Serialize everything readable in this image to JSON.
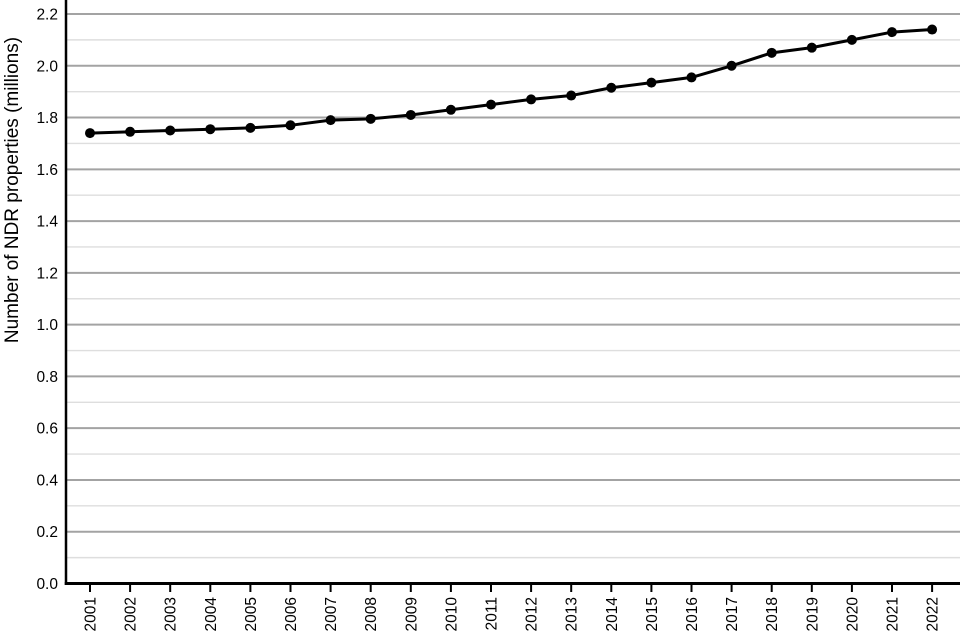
{
  "chart": {
    "ylabel": "Number of NDR properties (millions)"
  },
  "chart_data": {
    "type": "line",
    "title": "",
    "xlabel": "",
    "ylabel": "Number of NDR properties (millions)",
    "x": [
      "2001",
      "2002",
      "2003",
      "2004",
      "2005",
      "2006",
      "2007",
      "2008",
      "2009",
      "2010",
      "2011",
      "2012",
      "2013",
      "2014",
      "2015",
      "2016",
      "2017",
      "2018",
      "2019",
      "2020",
      "2021",
      "2022"
    ],
    "series": [
      {
        "name": "NDR properties (millions)",
        "values": [
          1.74,
          1.745,
          1.75,
          1.755,
          1.76,
          1.77,
          1.79,
          1.795,
          1.81,
          1.83,
          1.85,
          1.87,
          1.885,
          1.915,
          1.935,
          1.955,
          2.0,
          2.05,
          2.07,
          2.1,
          2.13,
          2.14
        ]
      }
    ],
    "ylim": [
      0.0,
      2.2
    ],
    "y_major_step": 0.2,
    "y_minor_step": 0.1,
    "y_tick_labels": [
      "0.0",
      "0.2",
      "0.4",
      "0.6",
      "0.8",
      "1.0",
      "1.2",
      "1.4",
      "1.6",
      "1.8",
      "2.0",
      "2.2"
    ],
    "legend": "none",
    "grid": "horizontal major and minor",
    "marker": "filled-circle",
    "colors": {
      "line": "#000000",
      "marker": "#000000",
      "axis": "#000000",
      "text": "#000000",
      "major_grid": "#a3a3a3",
      "minor_grid": "#dedede",
      "background": "#ffffff"
    }
  }
}
